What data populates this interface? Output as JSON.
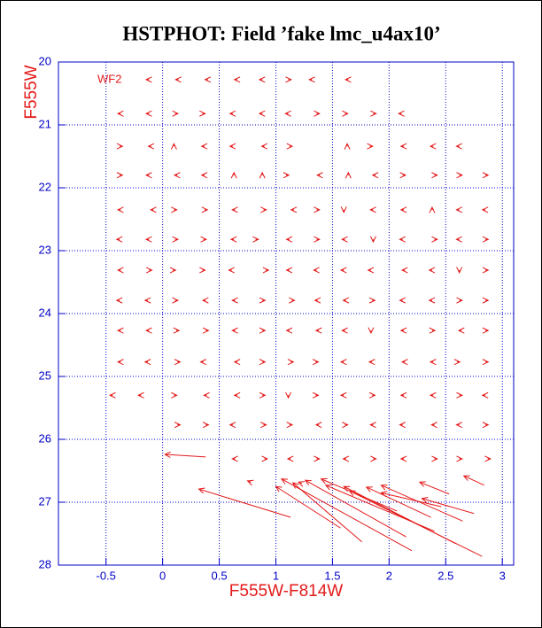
{
  "chart_data": {
    "type": "quiver",
    "title": "HSTPHOT: Field ’fake lmc_u4ax10’",
    "annotation": "WF2",
    "x_label": "F555W-F814W",
    "y_label": "F555W",
    "xlim": [
      -0.92,
      3.1
    ],
    "ylim": [
      20,
      28
    ],
    "y_inverted": true,
    "xticks": [
      -0.5,
      0,
      0.5,
      1,
      1.5,
      2,
      2.5,
      3
    ],
    "yticks": [
      20,
      21,
      22,
      23,
      24,
      25,
      26,
      27,
      28
    ],
    "grid": true,
    "color": "#e41a1a",
    "axis_color": "#0000c8",
    "x": [
      -0.12,
      0.14,
      0.4,
      0.66,
      0.88,
      1.11,
      1.32,
      1.64,
      -0.37,
      -0.12,
      0.11,
      0.35,
      0.62,
      0.88,
      1.11,
      1.36,
      1.61,
      1.86,
      2.11,
      -0.38,
      -0.1,
      0.1,
      0.37,
      0.62,
      0.9,
      1.12,
      1.63,
      1.83,
      2.13,
      2.39,
      2.62,
      -0.38,
      -0.12,
      0.13,
      0.37,
      0.63,
      0.88,
      1.09,
      1.39,
      1.64,
      1.88,
      2.12,
      2.4,
      2.62,
      2.85,
      -0.37,
      -0.08,
      0.1,
      0.37,
      0.64,
      0.89,
      1.16,
      1.36,
      1.6,
      1.86,
      2.13,
      2.38,
      2.62,
      2.85,
      -0.38,
      -0.12,
      0.11,
      0.36,
      0.63,
      0.82,
      1.12,
      1.36,
      1.61,
      1.86,
      2.12,
      2.4,
      2.62,
      2.85,
      -0.37,
      -0.12,
      0.09,
      0.35,
      0.61,
      0.91,
      1.12,
      1.36,
      1.6,
      1.84,
      2.14,
      2.38,
      2.62,
      2.85,
      -0.38,
      -0.13,
      0.11,
      0.38,
      0.64,
      0.88,
      1.14,
      1.37,
      1.62,
      1.85,
      2.12,
      2.38,
      2.62,
      2.85,
      -0.37,
      -0.12,
      0.12,
      0.38,
      0.64,
      0.88,
      1.12,
      1.38,
      1.61,
      1.84,
      2.13,
      2.38,
      2.64,
      2.85,
      -0.37,
      -0.13,
      0.13,
      0.36,
      0.66,
      0.88,
      1.13,
      1.35,
      1.6,
      1.85,
      2.14,
      2.39,
      2.6,
      2.85,
      -0.44,
      -0.19,
      0.1,
      0.39,
      0.66,
      0.88,
      1.11,
      1.35,
      1.6,
      1.85,
      2.13,
      2.39,
      2.62,
      2.85,
      0.13,
      0.38,
      0.62,
      0.89,
      1.12,
      1.38,
      1.61,
      1.86,
      2.12,
      2.4,
      2.62,
      2.85,
      0.64,
      0.9,
      1.13,
      1.36,
      1.62,
      1.86,
      2.13,
      2.4,
      2.62,
      2.87,
      0.38,
      1.13,
      1.57,
      2.2,
      1.76,
      2.15,
      2.07,
      2.4,
      2.59,
      2.82,
      2.37,
      2.65,
      2.46,
      2.75,
      2.53,
      2.84,
      0.78,
      1.23
    ],
    "y": [
      20.28,
      20.28,
      20.28,
      20.28,
      20.28,
      20.28,
      20.28,
      20.28,
      20.82,
      20.82,
      20.82,
      20.82,
      20.82,
      20.82,
      20.82,
      20.82,
      20.82,
      20.82,
      20.82,
      21.34,
      21.34,
      21.34,
      21.34,
      21.34,
      21.34,
      21.34,
      21.34,
      21.34,
      21.34,
      21.34,
      21.34,
      21.8,
      21.8,
      21.8,
      21.8,
      21.8,
      21.8,
      21.8,
      21.8,
      21.8,
      21.8,
      21.8,
      21.8,
      21.8,
      21.8,
      22.35,
      22.35,
      22.35,
      22.35,
      22.35,
      22.35,
      22.35,
      22.35,
      22.35,
      22.35,
      22.35,
      22.35,
      22.35,
      22.35,
      22.82,
      22.82,
      22.82,
      22.82,
      22.82,
      22.82,
      22.82,
      22.82,
      22.82,
      22.82,
      22.82,
      22.82,
      22.82,
      22.82,
      23.31,
      23.31,
      23.31,
      23.31,
      23.31,
      23.31,
      23.31,
      23.31,
      23.31,
      23.31,
      23.31,
      23.31,
      23.31,
      23.31,
      23.79,
      23.79,
      23.79,
      23.79,
      23.79,
      23.79,
      23.79,
      23.79,
      23.79,
      23.79,
      23.79,
      23.79,
      23.79,
      23.79,
      24.27,
      24.27,
      24.27,
      24.27,
      24.27,
      24.27,
      24.27,
      24.27,
      24.27,
      24.27,
      24.27,
      24.27,
      24.27,
      24.27,
      24.77,
      24.77,
      24.77,
      24.77,
      24.77,
      24.77,
      24.77,
      24.77,
      24.77,
      24.77,
      24.77,
      24.77,
      24.77,
      24.77,
      25.3,
      25.3,
      25.3,
      25.3,
      25.3,
      25.3,
      25.3,
      25.3,
      25.3,
      25.3,
      25.3,
      25.3,
      25.3,
      25.3,
      25.77,
      25.77,
      25.77,
      25.77,
      25.77,
      25.77,
      25.77,
      25.77,
      25.77,
      25.77,
      25.77,
      25.77,
      26.31,
      26.31,
      26.31,
      26.31,
      26.31,
      26.31,
      26.31,
      26.31,
      26.31,
      26.31,
      26.28,
      27.24,
      27.41,
      27.77,
      27.63,
      27.55,
      27.14,
      27.46,
      27.66,
      27.86,
      27.24,
      27.3,
      27.07,
      27.18,
      26.87,
      26.73,
      26.68,
      26.7
    ],
    "u": [
      -0.025,
      -0.025,
      -0.025,
      -0.025,
      -0.025,
      0.025,
      -0.025,
      -0.025,
      -0.025,
      -0.025,
      0.025,
      0.025,
      -0.025,
      -0.025,
      -0.025,
      0.025,
      0.025,
      0.025,
      -0.025,
      0.025,
      -0.025,
      0,
      -0.025,
      -0.025,
      -0.025,
      0.025,
      0,
      0.025,
      -0.025,
      -0.025,
      -0.025,
      0.025,
      -0.025,
      -0.025,
      -0.025,
      0,
      0,
      0.025,
      -0.025,
      0,
      -0.025,
      0.025,
      0.025,
      0.025,
      0.025,
      -0.025,
      -0.025,
      0.025,
      0.025,
      -0.025,
      0.025,
      -0.025,
      0.025,
      0,
      -0.025,
      -0.025,
      0,
      -0.025,
      -0.025,
      -0.025,
      -0.025,
      0.025,
      0.025,
      -0.025,
      0.025,
      -0.025,
      0.025,
      -0.025,
      0,
      -0.025,
      0.025,
      -0.025,
      0.025,
      -0.025,
      0.025,
      0.025,
      0.025,
      -0.025,
      0.025,
      -0.025,
      -0.025,
      -0.025,
      -0.025,
      -0.025,
      -0.025,
      0,
      0.025,
      -0.025,
      -0.025,
      0.025,
      -0.025,
      -0.025,
      0.025,
      0.025,
      -0.025,
      -0.025,
      0.025,
      -0.025,
      -0.025,
      0.025,
      0.025,
      -0.025,
      -0.025,
      0.025,
      0.025,
      -0.025,
      0.025,
      -0.025,
      -0.025,
      -0.025,
      0,
      -0.025,
      0.025,
      -0.025,
      0.025,
      -0.025,
      -0.025,
      0.025,
      -0.025,
      -0.025,
      0.025,
      0.025,
      0.025,
      -0.025,
      -0.025,
      -0.025,
      -0.025,
      0.025,
      0.025,
      -0.025,
      -0.025,
      0.025,
      -0.025,
      -0.025,
      0.025,
      0,
      0.025,
      -0.025,
      0.025,
      -0.025,
      -0.025,
      0.025,
      -0.025,
      0.025,
      0.025,
      -0.025,
      0.025,
      0.025,
      -0.025,
      0.025,
      -0.025,
      -0.025,
      -0.025,
      -0.025,
      0.025,
      -0.025,
      0.025,
      -0.025,
      0.025,
      -0.025,
      0.025,
      -0.025,
      0.025,
      0.025,
      0.025,
      -0.36,
      -0.81,
      -0.57,
      -1.15,
      -0.61,
      -0.89,
      -0.67,
      -0.96,
      -0.99,
      -1.17,
      -0.57,
      -0.72,
      -0.53,
      -0.46,
      -0.26,
      -0.18,
      -0.03,
      -0.03
    ],
    "v": [
      0,
      0,
      0,
      0,
      0,
      0,
      0,
      0,
      0,
      0,
      0,
      0,
      0,
      0,
      0,
      0,
      0,
      0,
      0,
      0,
      0,
      -0.04,
      0,
      0,
      0,
      0,
      -0.04,
      0,
      0,
      0,
      0,
      0,
      0,
      0,
      0,
      -0.04,
      -0.04,
      0,
      0,
      -0.04,
      0,
      0,
      0,
      0,
      0,
      0,
      0,
      0,
      0,
      0,
      0,
      0,
      0,
      0.04,
      0,
      0,
      -0.04,
      0,
      0,
      0,
      0,
      0,
      0,
      0,
      0,
      0,
      0,
      0,
      0.04,
      0,
      0,
      0,
      0,
      0,
      0,
      0,
      0,
      0,
      0,
      0,
      0,
      0,
      0,
      0,
      0,
      0.04,
      0,
      0,
      0,
      0,
      0,
      0,
      0,
      0,
      0,
      0,
      0,
      0,
      0,
      0,
      0,
      0,
      0,
      0,
      0,
      0,
      0,
      0,
      0,
      0,
      0.04,
      0,
      0,
      0,
      0,
      0,
      0,
      0,
      0,
      0,
      0,
      0,
      0,
      0,
      0,
      0,
      0,
      0,
      0,
      0,
      0,
      0,
      0,
      0,
      0,
      0.04,
      0,
      0,
      0,
      0,
      0,
      0,
      0,
      0,
      0,
      0,
      0,
      0,
      0,
      0,
      0,
      0,
      0,
      0,
      0,
      0,
      0,
      0,
      0,
      0,
      0,
      0,
      0,
      0,
      0,
      -0.04,
      -0.45,
      -0.66,
      -1.14,
      -0.94,
      -0.9,
      -0.51,
      -0.73,
      -0.91,
      -1.04,
      -0.48,
      -0.57,
      -0.22,
      -0.24,
      -0.19,
      -0.15,
      -0.02,
      -0.02
    ]
  }
}
